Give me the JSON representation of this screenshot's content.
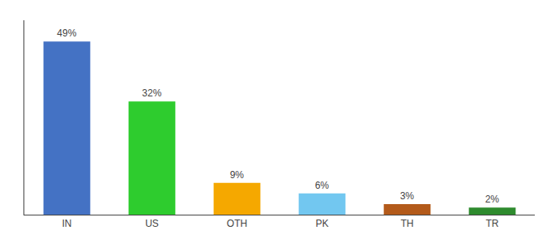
{
  "chart_data": {
    "type": "bar",
    "categories": [
      "IN",
      "US",
      "OTH",
      "PK",
      "TH",
      "TR"
    ],
    "values": [
      49,
      32,
      9,
      6,
      3,
      2
    ],
    "value_labels": [
      "49%",
      "32%",
      "9%",
      "6%",
      "3%",
      "2%"
    ],
    "colors": [
      "#4472c4",
      "#2ecc2e",
      "#f5a800",
      "#72c7f0",
      "#b35a1a",
      "#2e8b2e"
    ],
    "ylim": [
      0,
      55
    ],
    "data_labels": true,
    "tick_labels": "x",
    "grid": false
  }
}
